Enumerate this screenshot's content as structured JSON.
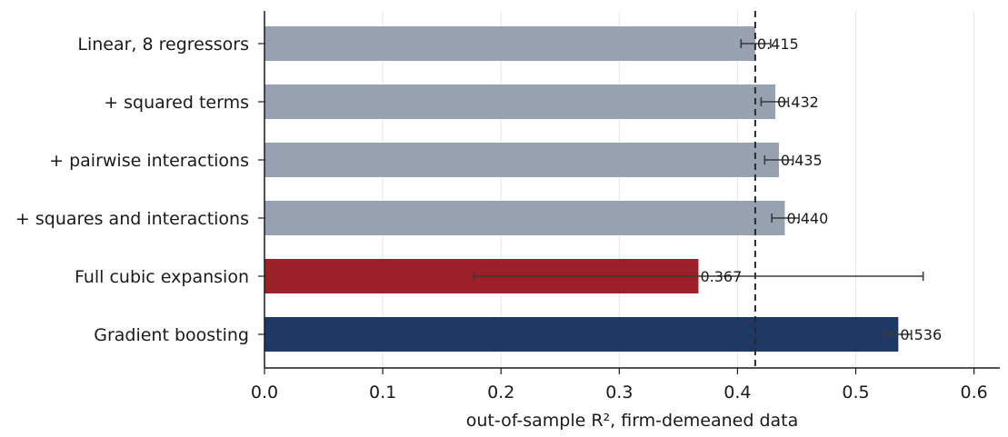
{
  "chart_data": {
    "type": "bar",
    "orientation": "horizontal",
    "categories": [
      "Linear, 8 regressors",
      "+ squared terms",
      "+ pairwise interactions",
      "+ squares and interactions",
      "Full cubic expansion",
      "Gradient boosting"
    ],
    "values": [
      0.415,
      0.432,
      0.435,
      0.44,
      0.367,
      0.536
    ],
    "value_labels": [
      "0.415",
      "0.432",
      "0.435",
      "0.440",
      "0.367",
      "0.536"
    ],
    "error_low": [
      0.403,
      0.42,
      0.423,
      0.429,
      0.177,
      0.525
    ],
    "error_high": [
      0.428,
      0.443,
      0.447,
      0.452,
      0.557,
      0.547
    ],
    "colors": [
      "#97a1b0",
      "#97a1b0",
      "#97a1b0",
      "#97a1b0",
      "#9b2027",
      "#1f3864"
    ],
    "error_color": "#3a3a3a",
    "reference_line": 0.415,
    "xlim": [
      0,
      0.62
    ],
    "xticks": [
      "0.0",
      "0.1",
      "0.2",
      "0.3",
      "0.4",
      "0.5",
      "0.6"
    ],
    "xlabel": "out-of-sample R², firm-demeaned data",
    "grid": "vertical",
    "title": ""
  }
}
